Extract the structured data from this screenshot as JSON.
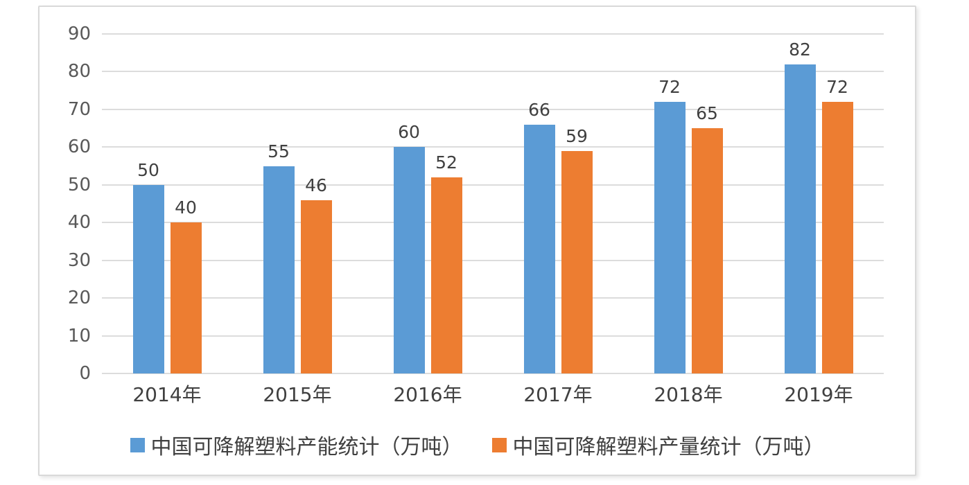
{
  "chart_data": {
    "type": "bar",
    "categories": [
      "2014年",
      "2015年",
      "2016年",
      "2017年",
      "2018年",
      "2019年"
    ],
    "series": [
      {
        "name": "中国可降解塑料产能统计（万吨）",
        "color": "#5B9BD5",
        "values": [
          50,
          55,
          60,
          66,
          72,
          82
        ]
      },
      {
        "name": "中国可降解塑料产量统计（万吨）",
        "color": "#ED7D31",
        "values": [
          40,
          46,
          52,
          59,
          65,
          72
        ]
      }
    ],
    "ylim": [
      0,
      90
    ],
    "yticks": [
      0,
      10,
      20,
      30,
      40,
      50,
      60,
      70,
      80,
      90
    ],
    "grid": "horizontal",
    "legend_position": "bottom",
    "data_labels": true
  },
  "style": {
    "gridline_color": "#dcdcdc",
    "axis_text_color": "#595959",
    "label_text_color": "#404040",
    "frame_border_color": "#d9d9d9",
    "background_color": "#ffffff"
  }
}
